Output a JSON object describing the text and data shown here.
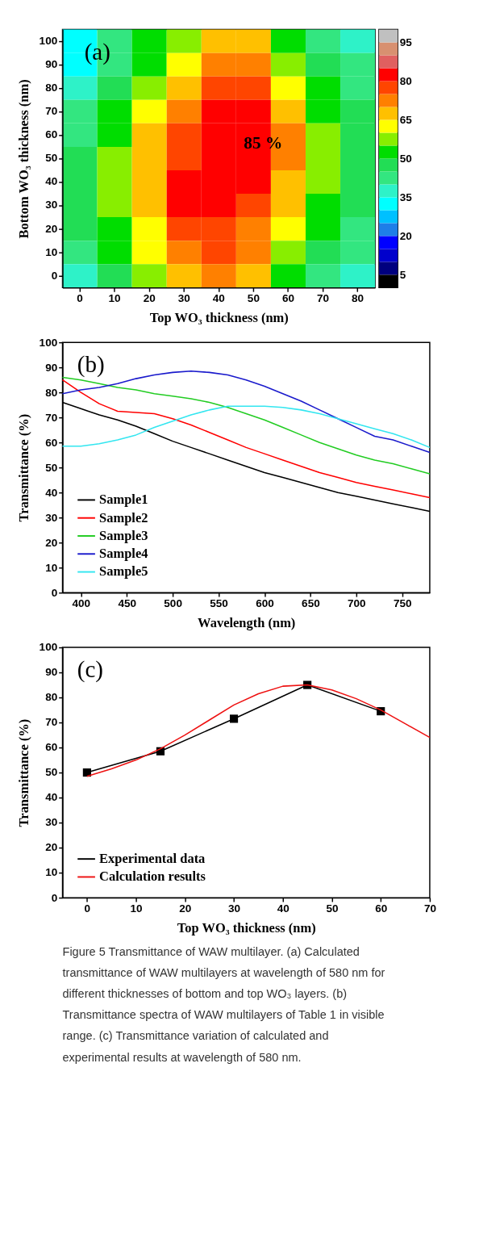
{
  "chart_data": [
    {
      "type": "heatmap",
      "xlabel": "Top WO₃ thickness (nm)",
      "ylabel": "Bottom WO₃ thickness (nm)",
      "categories": [
        "0",
        "10",
        "20",
        "30",
        "40",
        "50",
        "60",
        "70",
        "80"
      ],
      "y_categories": [
        "100",
        "90",
        "80",
        "70",
        "60",
        "50",
        "40",
        "30",
        "20",
        "10",
        "0"
      ],
      "cells": [
        [
          32,
          40,
          50,
          58,
          67,
          66,
          52,
          42,
          38
        ],
        [
          33,
          42,
          52,
          62,
          72,
          70,
          57,
          46,
          40
        ],
        [
          37,
          45,
          55,
          66,
          76,
          76,
          62,
          50,
          43
        ],
        [
          40,
          50,
          60,
          71,
          80,
          80,
          66,
          53,
          45
        ],
        [
          44,
          53,
          65,
          75,
          83,
          82,
          70,
          56,
          47
        ],
        [
          46,
          57,
          67,
          78,
          84,
          83,
          70,
          57,
          49
        ],
        [
          48,
          59,
          68,
          80,
          84,
          80,
          68,
          55,
          48
        ],
        [
          47,
          57,
          67,
          80,
          82,
          78,
          65,
          53,
          46
        ],
        [
          45,
          53,
          64,
          75,
          79,
          74,
          61,
          50,
          44
        ],
        [
          42,
          50,
          60,
          71,
          76,
          70,
          57,
          47,
          41
        ],
        [
          39,
          47,
          56,
          67,
          72,
          66,
          53,
          44,
          38
        ]
      ],
      "colors": [
        "#000000",
        "#00007f",
        "#0000cc",
        "#0000ff",
        "#1e7ee8",
        "#00c0ff",
        "#00ffff",
        "#2ef2c8",
        "#33e680",
        "#22dd55",
        "#00dd00",
        "#88ee00",
        "#ffff00",
        "#ffc000",
        "#ff8000",
        "#ff4500",
        "#ff0000",
        "#e06060",
        "#d89070",
        "#c0c0c0"
      ],
      "clim": [
        0,
        100
      ],
      "cticks": [
        5,
        20,
        35,
        50,
        65,
        80,
        95
      ],
      "annotations": [
        "(a)",
        "85 %"
      ]
    },
    {
      "type": "line",
      "xlabel": "Wavelength (nm)",
      "ylabel": "Transmittance (%)",
      "xlim": [
        380,
        780
      ],
      "xticks": [
        400,
        450,
        500,
        550,
        600,
        650,
        700,
        750
      ],
      "ylim": [
        0,
        100
      ],
      "yticks": [
        0,
        10,
        20,
        30,
        40,
        50,
        60,
        70,
        80,
        90,
        100
      ],
      "grid": false,
      "legend": "bottom left",
      "annotations": [
        "(b)"
      ],
      "x": [
        380,
        400,
        420,
        440,
        460,
        480,
        500,
        520,
        540,
        560,
        580,
        600,
        620,
        640,
        660,
        680,
        700,
        720,
        740,
        760,
        780
      ],
      "series": [
        {
          "name": "Sample1",
          "color": "#000000",
          "values": [
            76,
            73.5,
            71,
            69,
            66.5,
            63.5,
            60.5,
            58,
            55.5,
            53,
            50.5,
            48,
            46,
            44,
            42,
            40,
            38.5,
            37,
            35.5,
            34,
            32.5
          ]
        },
        {
          "name": "Sample2",
          "color": "#ff0000",
          "values": [
            85,
            80,
            75.5,
            72.5,
            72,
            71.5,
            69.5,
            67,
            64,
            61,
            58,
            55.5,
            53,
            50.5,
            48,
            46,
            44,
            42.5,
            41,
            39.5,
            38
          ]
        },
        {
          "name": "Sample3",
          "color": "#22cc22",
          "values": [
            86,
            85,
            83.5,
            82,
            81,
            79.5,
            78.5,
            77.5,
            76,
            74,
            71.5,
            69,
            66,
            63,
            60,
            57.5,
            55,
            53,
            51.5,
            49.5,
            47.5
          ]
        },
        {
          "name": "Sample4",
          "color": "#1a1acc",
          "values": [
            79.5,
            81,
            82,
            83.5,
            85.5,
            87,
            88,
            88.5,
            88,
            87,
            85,
            82.5,
            79.5,
            76.5,
            73,
            69.5,
            66,
            62.5,
            61,
            58.5,
            56
          ]
        },
        {
          "name": "Sample5",
          "color": "#33e6f0",
          "values": [
            58.5,
            58.5,
            59.5,
            61,
            63,
            66,
            68.5,
            71,
            73,
            74.5,
            74.5,
            74.5,
            74,
            73,
            71.5,
            69.5,
            67.5,
            65.5,
            63.5,
            61,
            58
          ]
        }
      ]
    },
    {
      "type": "line",
      "xlabel": "Top WO₃ thickness (nm)",
      "ylabel": "Transmittance (%)",
      "xlim": [
        -5,
        70
      ],
      "xticks": [
        0,
        10,
        20,
        30,
        40,
        50,
        60,
        70
      ],
      "ylim": [
        0,
        100
      ],
      "yticks": [
        0,
        10,
        20,
        30,
        40,
        50,
        60,
        70,
        80,
        90,
        100
      ],
      "grid": false,
      "legend": "bottom left",
      "annotations": [
        "(c)",
        "Figure 5 Transmittance of WAW multilayer. (a) Calculated transmittance of WAW multilayers at wavelength of 580 nm for different thicknesses of bottom and top WO₃ layers. (b) Transmittance spectra of WAW multilayers of Table 1 in visible range. (c) Transmittance variation of calculated and experimental results at wavelength of 580 nm."
      ],
      "series": [
        {
          "name": "Experimental data",
          "color": "#000000",
          "marker": "square",
          "x": [
            0,
            15,
            30,
            45,
            60
          ],
          "values": [
            50,
            58.5,
            71.5,
            85,
            74.5
          ]
        },
        {
          "name": "Calculation results",
          "color": "#ee1111",
          "marker": "none",
          "x": [
            0,
            5,
            10,
            15,
            20,
            25,
            30,
            35,
            40,
            45,
            50,
            55,
            60,
            65,
            70
          ],
          "values": [
            48.5,
            51.5,
            55,
            59.5,
            65,
            71,
            77,
            81.5,
            84.5,
            85,
            83,
            79.5,
            75,
            69.5,
            64
          ]
        }
      ]
    }
  ]
}
